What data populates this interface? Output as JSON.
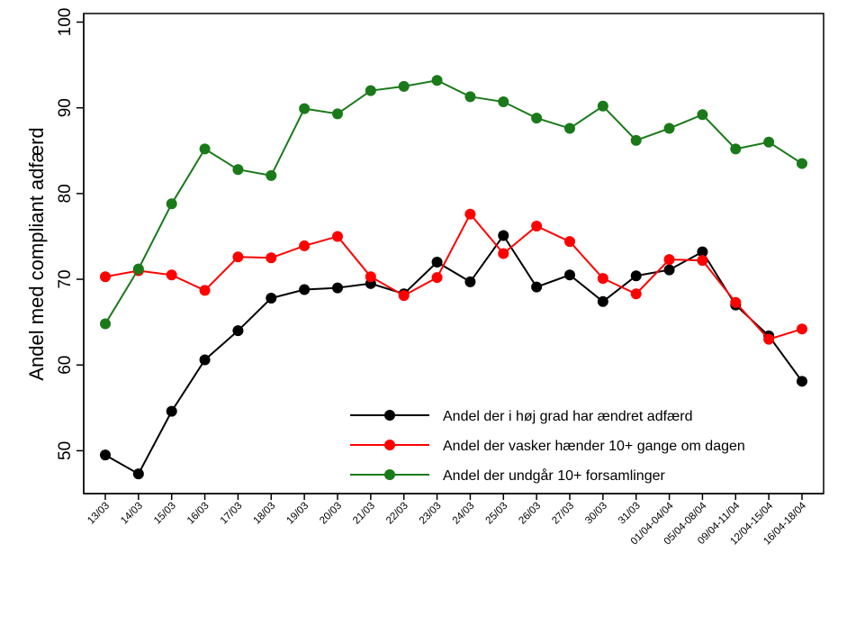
{
  "chart_data": {
    "type": "line",
    "title": "",
    "xlabel": "",
    "ylabel": "Andel med compliant adfærd",
    "ylim": [
      45,
      101
    ],
    "yticks": [
      50,
      60,
      70,
      80,
      90,
      100
    ],
    "grid": false,
    "legend_position": "bottom-right",
    "categories": [
      "13/03",
      "14/03",
      "15/03",
      "16/03",
      "17/03",
      "18/03",
      "19/03",
      "20/03",
      "21/03",
      "22/03",
      "23/03",
      "24/03",
      "25/03",
      "26/03",
      "27/03",
      "30/03",
      "31/03",
      "01/04-04/04",
      "05/04-08/04",
      "09/04-11/04",
      "12/04-15/04",
      "16/04-18/04"
    ],
    "series": [
      {
        "name": "Andel der i høj grad har ændret adfærd",
        "color": "#000000",
        "values": [
          49.5,
          47.3,
          54.6,
          60.6,
          64.0,
          67.8,
          68.8,
          69.0,
          69.5,
          68.3,
          72.0,
          69.7,
          75.1,
          69.1,
          70.5,
          67.4,
          70.4,
          71.1,
          73.2,
          67.0,
          63.4,
          58.1
        ]
      },
      {
        "name": "Andel der vasker hænder 10+ gange om dagen",
        "color": "#ff0000",
        "values": [
          70.3,
          71.0,
          70.5,
          68.7,
          72.6,
          72.5,
          73.9,
          75.0,
          70.3,
          68.1,
          70.2,
          77.6,
          73.0,
          76.2,
          74.4,
          70.1,
          68.3,
          72.3,
          72.2,
          67.3,
          63.0,
          64.2
        ]
      },
      {
        "name": "Andel der undgår 10+ forsamlinger",
        "color": "#1a7a1a",
        "values": [
          64.8,
          71.2,
          78.8,
          85.2,
          82.8,
          82.1,
          89.9,
          89.3,
          92.0,
          92.5,
          93.2,
          91.3,
          90.7,
          88.8,
          87.6,
          90.2,
          86.2,
          87.6,
          89.2,
          85.2,
          86.0,
          83.5
        ]
      }
    ]
  }
}
